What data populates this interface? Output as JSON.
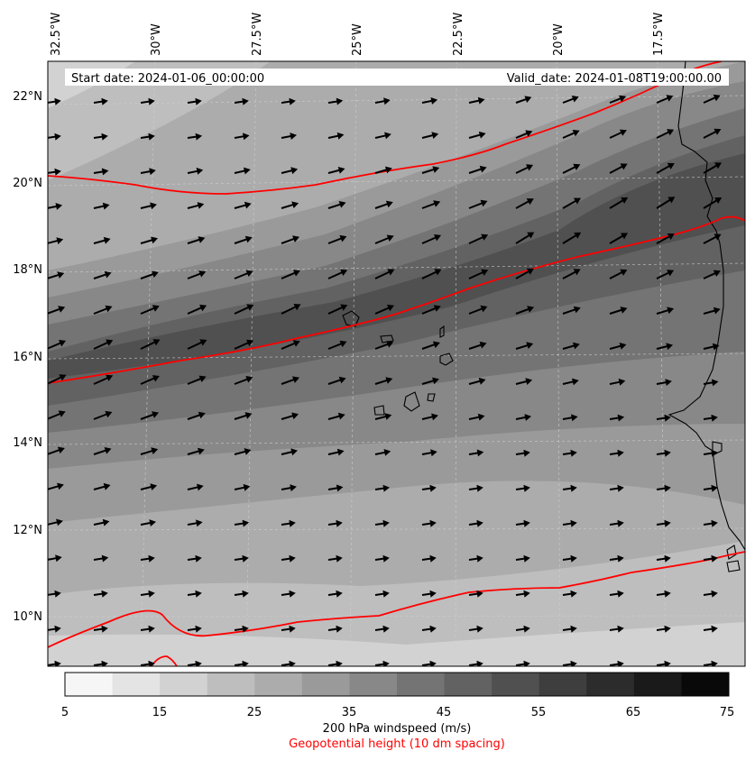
{
  "header": {
    "start_label": "Start date: 2024-01-06_00:00:00",
    "valid_label": "Valid_date: 2024-01-08T19:00:00.00"
  },
  "longitudes": [
    "32.5°W",
    "30°W",
    "27.5°W",
    "25°W",
    "22.5°W",
    "20°W",
    "17.5°W"
  ],
  "latitudes": [
    "22°N",
    "20°N",
    "18°N",
    "16°N",
    "14°N",
    "12°N",
    "10°N"
  ],
  "colorbar": {
    "ticks": [
      "5",
      "15",
      "25",
      "35",
      "45",
      "55",
      "65",
      "75"
    ],
    "colors": [
      "#f6f6f6",
      "#e4e4e4",
      "#d2d2d2",
      "#bebebe",
      "#acacac",
      "#9a9a9a",
      "#888888",
      "#747474",
      "#626262",
      "#505050",
      "#3e3e3e",
      "#2c2c2c",
      "#1a1a1a",
      "#090909"
    ]
  },
  "legend": {
    "wind_label": "200 hPa windspeed (m/s)",
    "geo_label": "Geopotential height (10 dm spacing)"
  },
  "style": {
    "contour_color": "#ff0000",
    "arrow_color": "#000000",
    "coast_color": "#000000"
  }
}
